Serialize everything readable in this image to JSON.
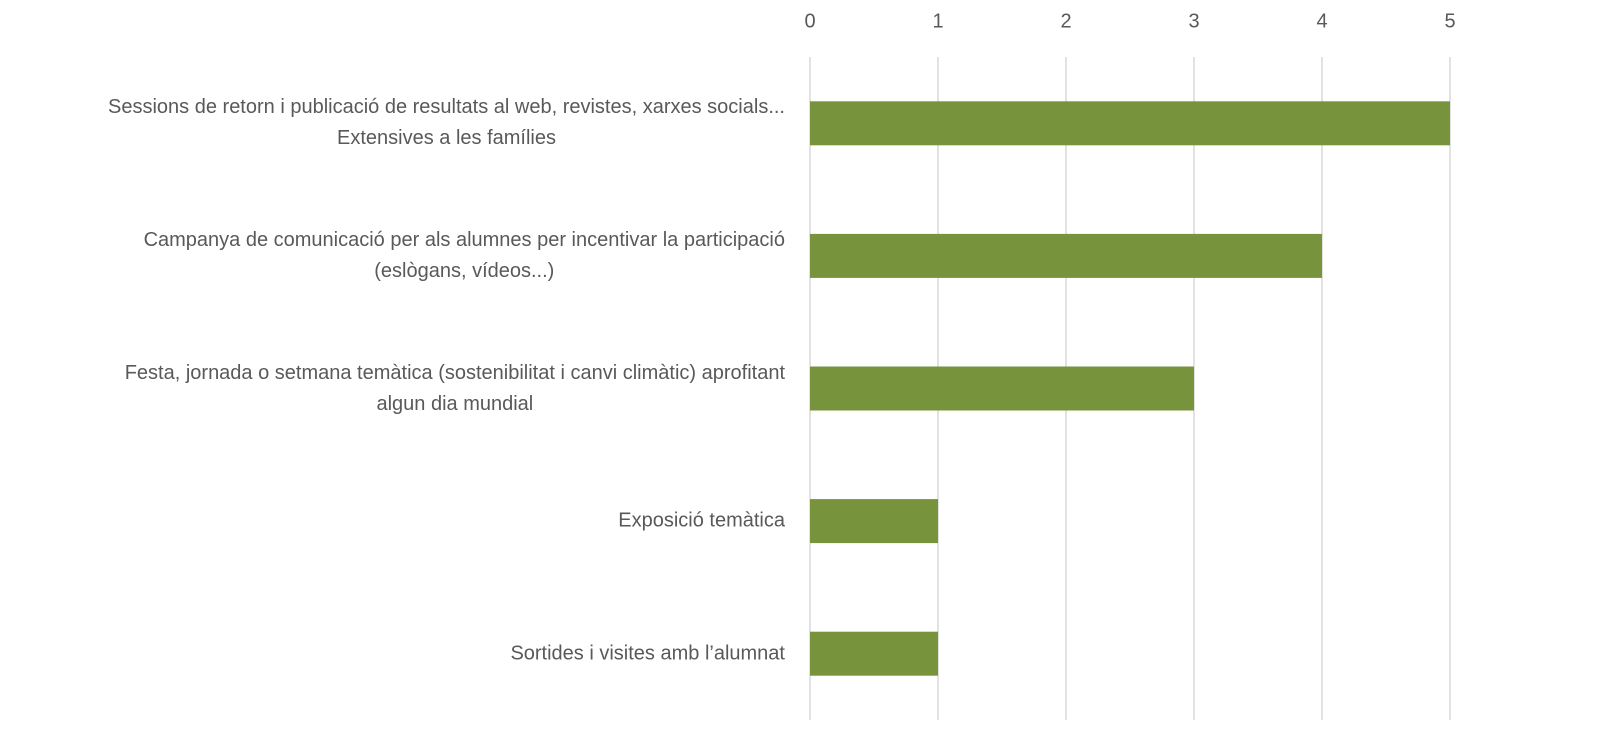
{
  "chart_data": {
    "type": "bar",
    "orientation": "horizontal",
    "categories": [
      "Sessions de retorn i publicació de resultats al web, revistes, xarxes socials...\nExtensives a les famílies",
      "Campanya de comunicació per als alumnes per incentivar la participació\n(eslògans, vídeos...)",
      "Festa, jornada o setmana temàtica (sostenibilitat i canvi climàtic) aprofitant\nalgun dia mundial",
      "Exposició temàtica",
      "Sortides i visites amb l’alumnat"
    ],
    "values": [
      5,
      4,
      3,
      1,
      1
    ],
    "color": "#77933c",
    "xlim": [
      0,
      5
    ],
    "xticks": [
      0,
      1,
      2,
      3,
      4,
      5
    ],
    "grid": true
  }
}
